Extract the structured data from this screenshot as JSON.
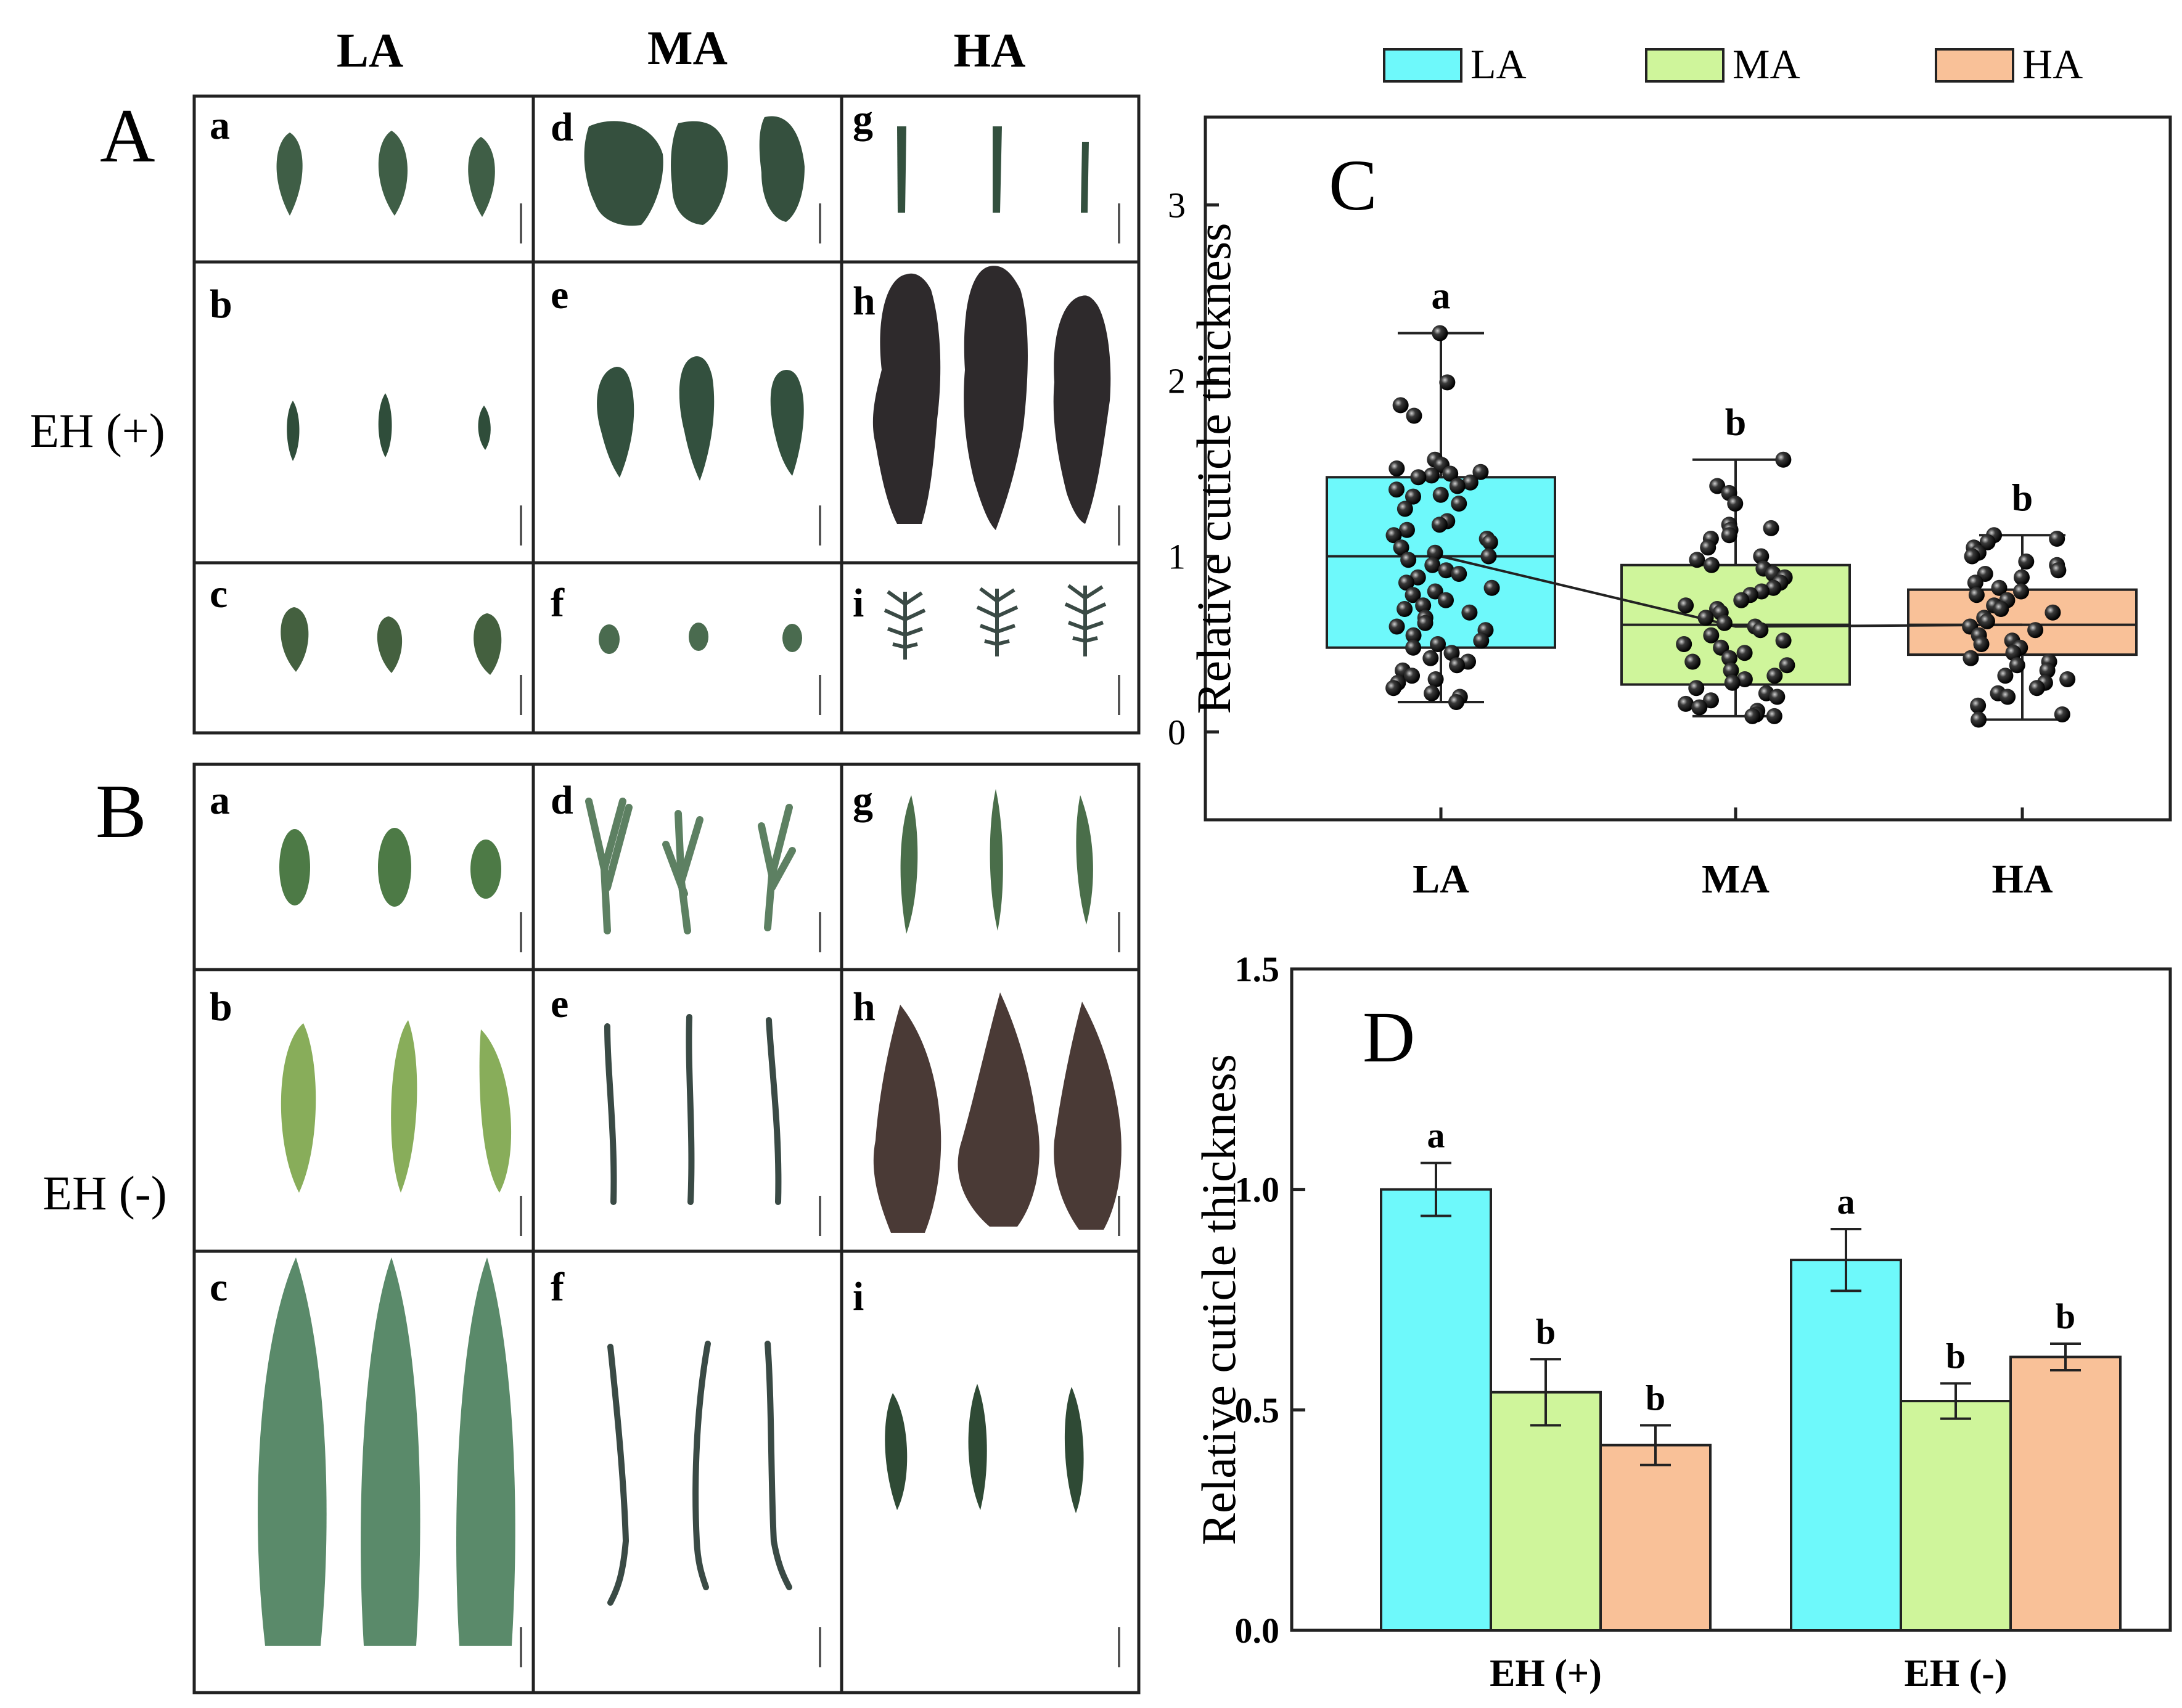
{
  "colors": {
    "LA": "#6EF9FB",
    "MA": "#CFF59B",
    "HA": "#F9C198",
    "frame": "#222222",
    "leaf_green": "#3f5e46",
    "leaf_light": "#7fa060",
    "leaf_dark": "#2e2a2c"
  },
  "panel_A": {
    "label": "A",
    "row_label": "EH (+)",
    "column_headers": [
      "LA",
      "MA",
      "HA"
    ],
    "cells": [
      "a",
      "b",
      "c",
      "d",
      "e",
      "f",
      "g",
      "h",
      "i"
    ]
  },
  "panel_B": {
    "label": "B",
    "row_label": "EH (-)",
    "cells": [
      "a",
      "b",
      "c",
      "d",
      "e",
      "f",
      "g",
      "h",
      "i"
    ]
  },
  "chart_data": [
    {
      "id": "C",
      "type": "box",
      "panel_label": "C",
      "ylabel": "Relative cuticle thickness",
      "ylim": [
        -0.5,
        3.5
      ],
      "yticks": [
        0,
        1,
        2,
        3
      ],
      "categories": [
        "LA",
        "MA",
        "HA"
      ],
      "legend": [
        "LA",
        "MA",
        "HA"
      ],
      "legend_position": "top",
      "boxes": [
        {
          "name": "LA",
          "whisker_low": 0.17,
          "q1": 0.48,
          "median": 1.0,
          "q3": 1.45,
          "whisker_high": 2.27,
          "mean": 1.0
        },
        {
          "name": "MA",
          "whisker_low": 0.09,
          "q1": 0.27,
          "median": 0.61,
          "q3": 0.95,
          "whisker_high": 1.55,
          "mean": 0.6
        },
        {
          "name": "HA",
          "whisker_low": 0.07,
          "q1": 0.44,
          "median": 0.61,
          "q3": 0.81,
          "whisker_high": 1.12,
          "mean": 0.61
        }
      ],
      "significance": [
        "a",
        "b",
        "b"
      ],
      "points": {
        "LA": [
          2.27,
          1.99,
          1.86,
          1.8,
          1.55,
          1.52,
          1.5,
          1.48,
          1.47,
          1.46,
          1.45,
          1.42,
          1.4,
          1.38,
          1.35,
          1.34,
          1.3,
          1.27,
          1.2,
          1.18,
          1.15,
          1.12,
          1.1,
          1.08,
          1.05,
          1.02,
          1.0,
          0.98,
          0.95,
          0.92,
          0.9,
          0.88,
          0.85,
          0.82,
          0.8,
          0.78,
          0.75,
          0.72,
          0.7,
          0.68,
          0.65,
          0.62,
          0.6,
          0.58,
          0.55,
          0.52,
          0.5,
          0.48,
          0.45,
          0.42,
          0.4,
          0.38,
          0.35,
          0.32,
          0.3,
          0.28,
          0.25,
          0.22,
          0.2,
          0.17
        ],
        "MA": [
          1.55,
          1.4,
          1.36,
          1.3,
          1.18,
          1.16,
          1.15,
          1.12,
          1.1,
          1.05,
          1.0,
          0.98,
          0.95,
          0.93,
          0.9,
          0.88,
          0.85,
          0.82,
          0.8,
          0.78,
          0.75,
          0.72,
          0.7,
          0.68,
          0.65,
          0.62,
          0.6,
          0.58,
          0.55,
          0.52,
          0.5,
          0.48,
          0.45,
          0.42,
          0.4,
          0.38,
          0.35,
          0.32,
          0.3,
          0.28,
          0.25,
          0.22,
          0.2,
          0.18,
          0.16,
          0.14,
          0.12,
          0.1,
          0.09,
          0.09
        ],
        "HA": [
          1.12,
          1.1,
          1.08,
          1.05,
          1.02,
          1.0,
          0.97,
          0.95,
          0.92,
          0.9,
          0.88,
          0.85,
          0.82,
          0.8,
          0.78,
          0.75,
          0.72,
          0.7,
          0.68,
          0.65,
          0.63,
          0.6,
          0.58,
          0.55,
          0.52,
          0.5,
          0.48,
          0.45,
          0.42,
          0.4,
          0.38,
          0.35,
          0.32,
          0.3,
          0.28,
          0.25,
          0.22,
          0.2,
          0.15,
          0.1,
          0.07
        ]
      }
    },
    {
      "id": "D",
      "type": "bar",
      "panel_label": "D",
      "ylabel": "Relative cuticle thickness",
      "ylim": [
        0,
        1.5
      ],
      "yticks": [
        "0.0",
        "0.5",
        "1.0",
        "1.5"
      ],
      "categories": [
        "EH (+)",
        "EH (-)"
      ],
      "series": [
        {
          "name": "LA",
          "values": [
            1.0,
            0.84
          ],
          "errors": [
            0.06,
            0.07
          ],
          "labels": [
            "a",
            "a"
          ]
        },
        {
          "name": "MA",
          "values": [
            0.54,
            0.52
          ],
          "errors": [
            0.075,
            0.04
          ],
          "labels": [
            "b",
            "b"
          ]
        },
        {
          "name": "HA",
          "values": [
            0.42,
            0.62
          ],
          "errors": [
            0.045,
            0.03
          ],
          "labels": [
            "b",
            "b"
          ]
        }
      ]
    }
  ]
}
